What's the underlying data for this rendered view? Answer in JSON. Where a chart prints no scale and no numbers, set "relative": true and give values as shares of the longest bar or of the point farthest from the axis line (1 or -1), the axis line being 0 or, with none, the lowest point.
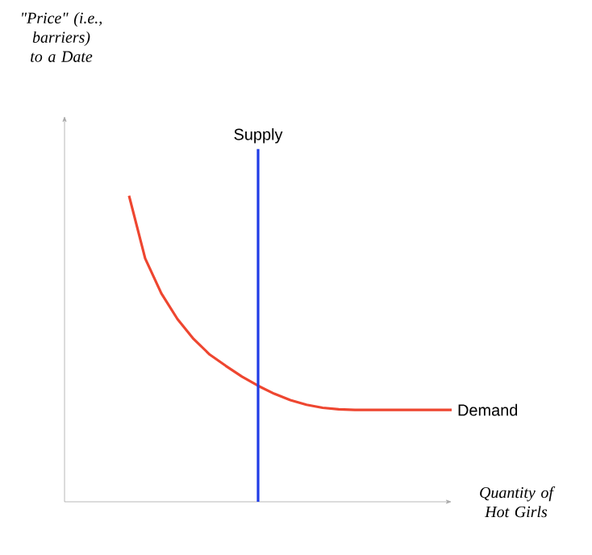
{
  "chart_data": {
    "type": "line",
    "relative": true,
    "xlabel": "Quantity of Hot Girls",
    "tick_labels": false,
    "categories": [
      null,
      null,
      null,
      null,
      null,
      null,
      null,
      null,
      null,
      null,
      null,
      null,
      null,
      null,
      null,
      null,
      null,
      null,
      null,
      null,
      null,
      null,
      null,
      null,
      null
    ],
    "series": [
      {
        "name": "Demand",
        "color": "#ee4630",
        "values": [
          null,
          null,
          null,
          null,
          1,
          0.795,
          0.681,
          0.597,
          0.532,
          0.481,
          0.444,
          0.409,
          0.379,
          0.353,
          0.332,
          0.317,
          0.307,
          0.302,
          0.3,
          0.3,
          0.3,
          0.3,
          0.3,
          0.3,
          0.3
        ]
      }
    ],
    "annotations": [
      "\"Price\" (i.e., barriers) to a Date",
      "Supply"
    ]
  }
}
